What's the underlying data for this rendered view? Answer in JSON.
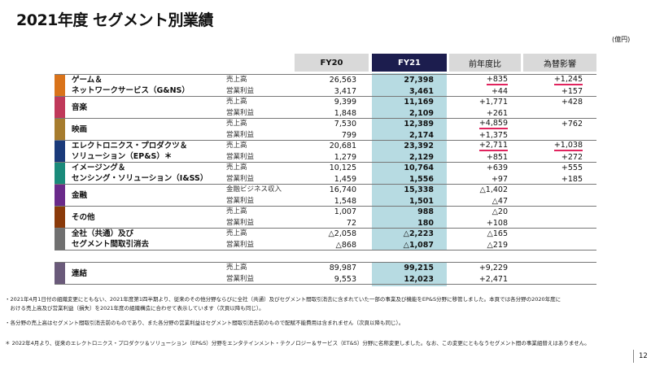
{
  "title": "2021年度 セグメント別業績",
  "unit": "(億円)",
  "headers": {
    "fy20": "FY20",
    "fy21": "FY21",
    "yoy": "前年度比",
    "fx": "為替影響"
  },
  "colors": {
    "fy21_header": "#1c1d4e",
    "fy21_col": "#b7dbe2",
    "underline": "#e0245e"
  },
  "segments": [
    {
      "name": [
        "ゲーム＆",
        "ネットワークサービス（G&NS）"
      ],
      "color": "#d9731a",
      "rows": [
        {
          "label": "売上高",
          "fy20": "26,563",
          "fy21": "27,398",
          "yoy": "+835",
          "fx": "+1,245",
          "ul_yoy": true,
          "ul_fx": true
        },
        {
          "label": "営業利益",
          "fy20": "3,417",
          "fy21": "3,461",
          "yoy": "+44",
          "fx": "+157"
        }
      ]
    },
    {
      "name": [
        "音楽"
      ],
      "color": "#c0395a",
      "rows": [
        {
          "label": "売上高",
          "fy20": "9,399",
          "fy21": "11,169",
          "yoy": "+1,771",
          "fx": "+428"
        },
        {
          "label": "営業利益",
          "fy20": "1,848",
          "fy21": "2,109",
          "yoy": "+261",
          "fx": ""
        }
      ]
    },
    {
      "name": [
        "映画"
      ],
      "color": "#a67c2e",
      "rows": [
        {
          "label": "売上高",
          "fy20": "7,530",
          "fy21": "12,389",
          "yoy": "+4,859",
          "fx": "+762",
          "ul_yoy": true
        },
        {
          "label": "営業利益",
          "fy20": "799",
          "fy21": "2,174",
          "yoy": "+1,375",
          "fx": ""
        }
      ]
    },
    {
      "name": [
        "エレクトロニクス・プロダクツ＆",
        "ソリューション（EP&S）＊"
      ],
      "color": "#1a3a7a",
      "rows": [
        {
          "label": "売上高",
          "fy20": "20,681",
          "fy21": "23,392",
          "yoy": "+2,711",
          "fx": "+1,038",
          "ul_yoy": true,
          "ul_fx": true
        },
        {
          "label": "営業利益",
          "fy20": "1,279",
          "fy21": "2,129",
          "yoy": "+851",
          "fx": "+272"
        }
      ]
    },
    {
      "name": [
        "イメージング＆",
        "センシング・ソリューション（I&SS）"
      ],
      "color": "#1a8a7a",
      "rows": [
        {
          "label": "売上高",
          "fy20": "10,125",
          "fy21": "10,764",
          "yoy": "+639",
          "fx": "+555"
        },
        {
          "label": "営業利益",
          "fy20": "1,459",
          "fy21": "1,556",
          "yoy": "+97",
          "fx": "+185"
        }
      ]
    },
    {
      "name": [
        "金融"
      ],
      "color": "#6a2a8a",
      "rows": [
        {
          "label": "金融ビジネス収入",
          "fy20": "16,740",
          "fy21": "15,338",
          "yoy": "△1,402",
          "fx": ""
        },
        {
          "label": "営業利益",
          "fy20": "1,548",
          "fy21": "1,501",
          "yoy": "△47",
          "fx": ""
        }
      ]
    },
    {
      "name": [
        "その他"
      ],
      "color": "#8a3a0a",
      "rows": [
        {
          "label": "売上高",
          "fy20": "1,007",
          "fy21": "988",
          "yoy": "△20",
          "fx": ""
        },
        {
          "label": "営業利益",
          "fy20": "72",
          "fy21": "180",
          "yoy": "+108",
          "fx": ""
        }
      ]
    },
    {
      "name": [
        "全社（共通）及び",
        "セグメント間取引消去"
      ],
      "color": "#707070",
      "rows": [
        {
          "label": "売上高",
          "fy20": "△2,058",
          "fy21": "△2,223",
          "yoy": "△165",
          "fx": ""
        },
        {
          "label": "営業利益",
          "fy20": "△868",
          "fy21": "△1,087",
          "yoy": "△219",
          "fx": ""
        }
      ]
    }
  ],
  "consolidated": {
    "name": [
      "連結"
    ],
    "color": "#6a5a7a",
    "rows": [
      {
        "label": "売上高",
        "fy20": "89,987",
        "fy21": "99,215",
        "yoy": "+9,229",
        "fx": ""
      },
      {
        "label": "営業利益",
        "fy20": "9,553",
        "fy21": "12,023",
        "yoy": "+2,471",
        "fx": ""
      }
    ]
  },
  "notes": [
    "・2021年4月1日付の組織変更にともない、2021年度第1四半期より、従来のその他分野ならびに全社（共通）及びセグメント間取引消去に含まれていた一部の事業及び機能をEP&S分野に移管しました。本頁では各分野の2020年度に",
    "　おける売上高及び営業利益（損失）を2021年度の組織構造に合わせて表示しています（次頁以降も同じ）。",
    "・各分野の売上高はセグメント間取引消去前のものであり、また各分野の営業利益はセグメント間取引消去前のもので配賦不能費用は含まれません（次頁以降も同じ）。",
    "＊ 2022年4月より、従来のエレクトロニクス・プロダクツ＆ソリューション（EP&S）分野をエンタテインメント・テクノロジー＆サービス（ET&S）分野に名称変更しました。なお、この変更にともなうセグメント間の事業組替えはありません。"
  ],
  "page_number": "12"
}
